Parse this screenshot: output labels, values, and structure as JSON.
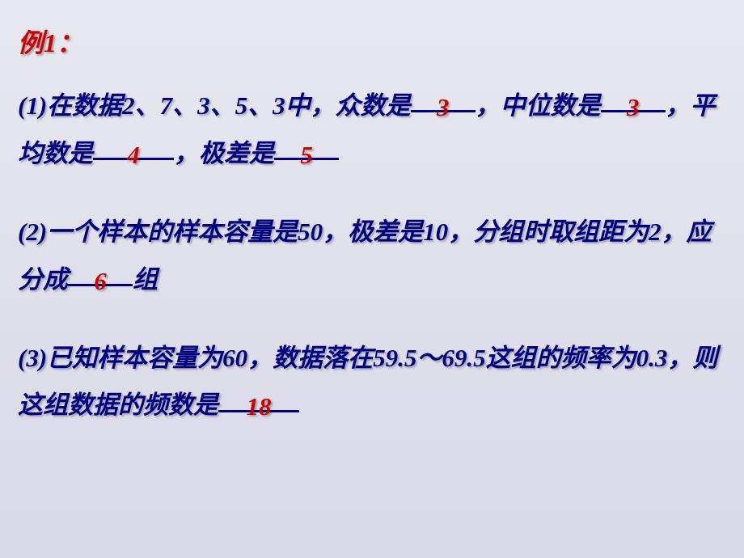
{
  "title": "例1：",
  "colors": {
    "title": "#cc0000",
    "text": "#000080",
    "answer": "#cc0000",
    "underline": "#000080",
    "background_start": "#e8e8f0",
    "background_end": "#d8d8e8"
  },
  "typography": {
    "title_fontsize": 32,
    "body_fontsize": 31,
    "font_weight": "bold",
    "font_style": "italic",
    "line_height": 1.9,
    "text_shadow": "2px 2px 2px rgba(0,0,0,0.25)"
  },
  "q1": {
    "text_a": "(1)在数据2、7、3、5、3中，众数是",
    "ans1": "3",
    "text_b": "，中位数是",
    "ans2": "3",
    "text_c": "，平均数是",
    "ans3": "4",
    "text_d": "，极差是",
    "ans4": "5"
  },
  "q2": {
    "text_a": "(2)一个样本的样本容量是50，极差是10，分组时取组距为2，应分成",
    "ans1": "6",
    "text_b": "组"
  },
  "q3": {
    "text_a": "(3)已知样本容量为60，数据落在59.5～69.5这组的频率为0.3，则这组数据的频数是",
    "ans1": "18"
  }
}
